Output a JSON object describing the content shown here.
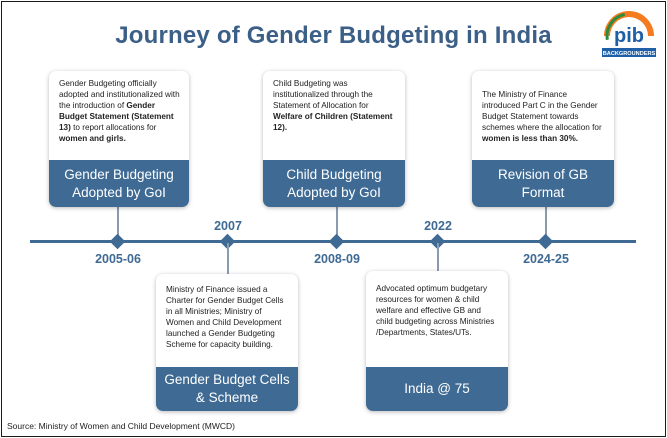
{
  "title": "Journey of Gender Budgeting in India",
  "logo": {
    "icon": "pib-logo",
    "text": "pib",
    "subtext": "BACKGROUNDERS",
    "colors": [
      "#f47b20",
      "#ffffff",
      "#2e8b3e",
      "#1e5fa8"
    ]
  },
  "accent_color": "#3e6a94",
  "milestones": [
    {
      "year": "2005-06",
      "heading": "Gender Budgeting Adopted by GoI",
      "text_parts": [
        {
          "t": "Gender Budgeting officially adopted and institutionalized with the introduction of ",
          "b": false
        },
        {
          "t": "Gender Budget Statement (Statement 13)",
          "b": true
        },
        {
          "t": " to report allocations for ",
          "b": false
        },
        {
          "t": "women and girls.",
          "b": true
        }
      ]
    },
    {
      "year": "2007",
      "heading": "Gender Budget Cells & Scheme",
      "text_parts": [
        {
          "t": "Ministry of Finance issued a Charter for Gender Budget Cells in all Ministries; Ministry of Women and Child Development launched a Gender Budgeting Scheme for capacity building.",
          "b": false
        }
      ]
    },
    {
      "year": "2008-09",
      "heading": "Child Budgeting Adopted by GoI",
      "text_parts": [
        {
          "t": "Child Budgeting was institutionalized through the Statement of Allocation for ",
          "b": false
        },
        {
          "t": "Welfare of Children (Statement 12).",
          "b": true
        }
      ]
    },
    {
      "year": "2022",
      "heading": "India @ 75",
      "text_parts": [
        {
          "t": "Advocated optimum budgetary resources for women & child welfare and effective GB and child budgeting across Ministries /Departments, States/UTs.",
          "b": false
        }
      ]
    },
    {
      "year": "2024-25",
      "heading": "Revision of GB Format",
      "text_parts": [
        {
          "t": "The Ministry of Finance introduced Part C in the Gender Budget Statement towards schemes where the allocation for ",
          "b": false
        },
        {
          "t": "women is less than 30%.",
          "b": true
        }
      ]
    }
  ],
  "source": "Source: Ministry of Women and Child Development (MWCD)"
}
